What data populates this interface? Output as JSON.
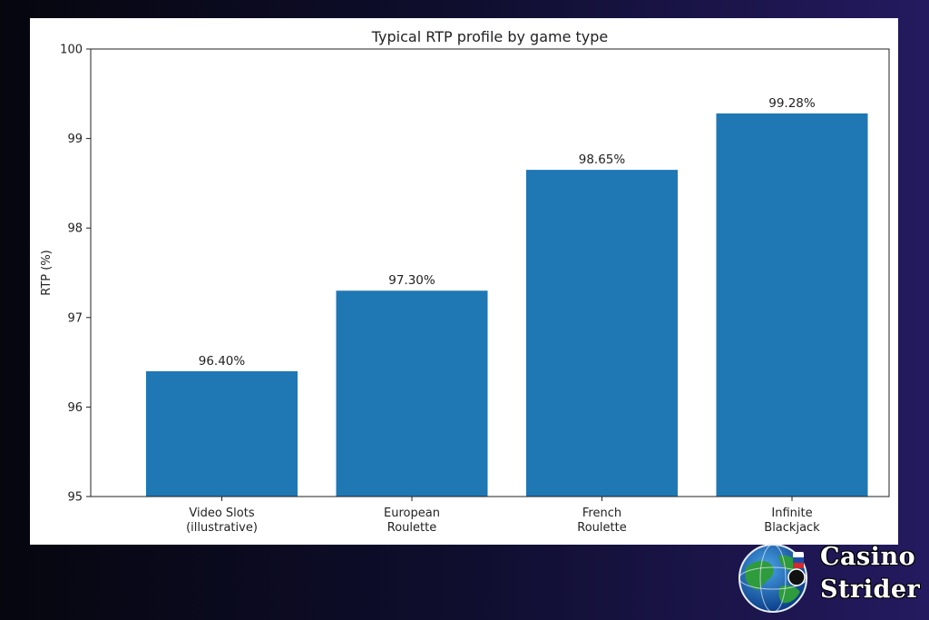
{
  "brand": {
    "line1": "Casino",
    "line2": "Strider"
  },
  "colors": {
    "bar": "#1f77b4",
    "axis": "#222222"
  },
  "chart_data": {
    "type": "bar",
    "title": "Typical RTP profile by game type",
    "ylabel": "RTP (%)",
    "xlabel": "",
    "ylim": [
      95,
      100
    ],
    "yticks": [
      95,
      96,
      97,
      98,
      99,
      100
    ],
    "grid": false,
    "categories": [
      [
        "Video Slots",
        "(illustrative)"
      ],
      [
        "European",
        "Roulette"
      ],
      [
        "French",
        "Roulette"
      ],
      [
        "Infinite",
        "Blackjack"
      ]
    ],
    "values": [
      96.4,
      97.3,
      98.65,
      99.28
    ],
    "value_labels": [
      "96.40%",
      "97.30%",
      "98.65%",
      "99.28%"
    ]
  }
}
